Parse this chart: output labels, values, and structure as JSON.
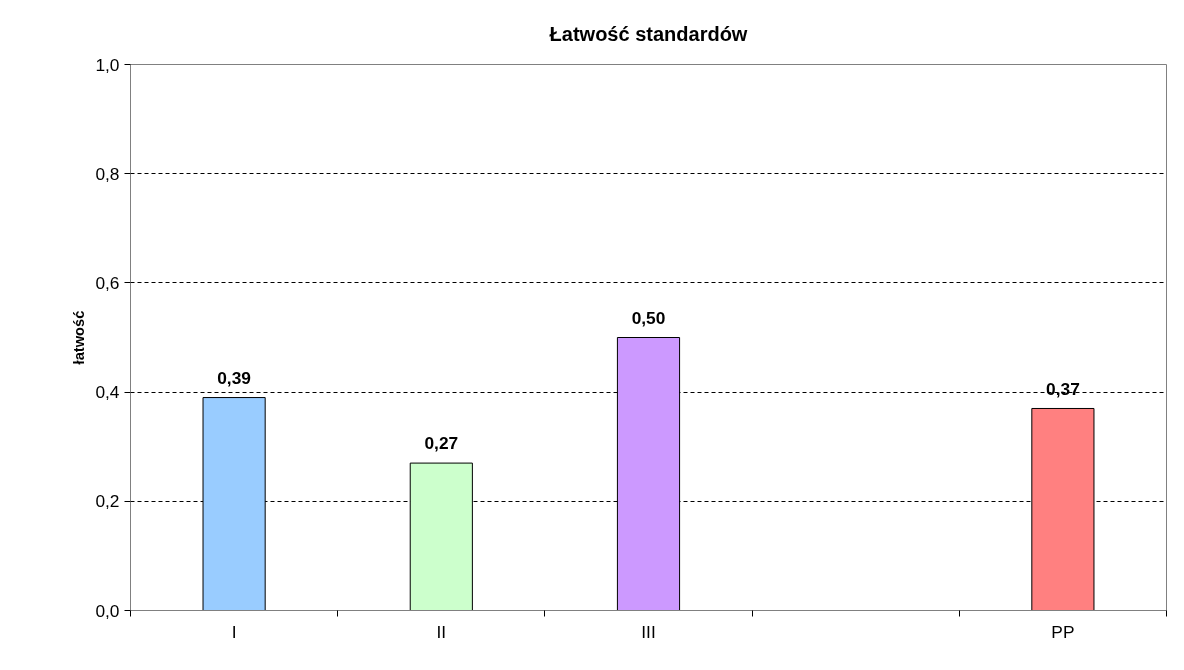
{
  "chart_data": {
    "type": "bar",
    "title": "Łatwość standardów",
    "ylabel": "łatwość",
    "categories": [
      "I",
      "II",
      "III",
      null,
      "PP"
    ],
    "values": [
      0.39,
      0.27,
      0.5,
      null,
      0.37
    ],
    "colors": [
      "#99ccff",
      "#ccffcc",
      "#cc99ff",
      null,
      "#ff8080"
    ],
    "value_labels": [
      "0,39",
      "0,27",
      "0,50",
      null,
      "0,37"
    ],
    "ylim": [
      0,
      1
    ],
    "yticks": [
      {
        "value": 0,
        "label": "0,0"
      },
      {
        "value": 0.2,
        "label": "0,2"
      },
      {
        "value": 0.4,
        "label": "0,4"
      },
      {
        "value": 0.6,
        "label": "0,6"
      },
      {
        "value": 0.8,
        "label": "0,8"
      },
      {
        "value": 1,
        "label": "1,0"
      }
    ],
    "grid": "y"
  }
}
